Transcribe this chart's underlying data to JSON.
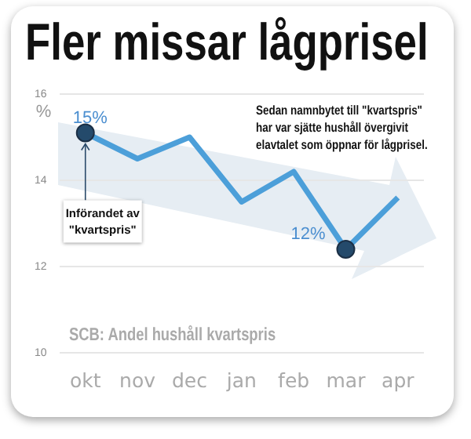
{
  "chart_data": {
    "type": "line",
    "title": "Fler missar lågprisel",
    "ylabel": "%",
    "categories": [
      "okt",
      "nov",
      "dec",
      "jan",
      "feb",
      "mar",
      "apr"
    ],
    "series": [
      {
        "color": "#4c9fd9",
        "values": [
          15.1,
          14.5,
          15.0,
          13.5,
          14.2,
          12.4,
          13.6
        ],
        "value_labels": [
          "15%",
          null,
          null,
          null,
          null,
          "12%",
          null
        ]
      }
    ],
    "ylim": [
      10,
      16
    ],
    "yticks": [
      10,
      12,
      14,
      16
    ],
    "grid": "y",
    "legend": false,
    "marker": "none",
    "line_style": "solid",
    "annotations": [
      {
        "text": "Införandet av \"kvartspris\"",
        "x": "okt",
        "y": 15.1
      },
      "Sedan namnbytet till \"kvartspris\" har var sjätte hushåll övergivit elavtalet som öppnar för lågprisel.",
      "SCB: Andel hushåll kvartspris"
    ]
  }
}
